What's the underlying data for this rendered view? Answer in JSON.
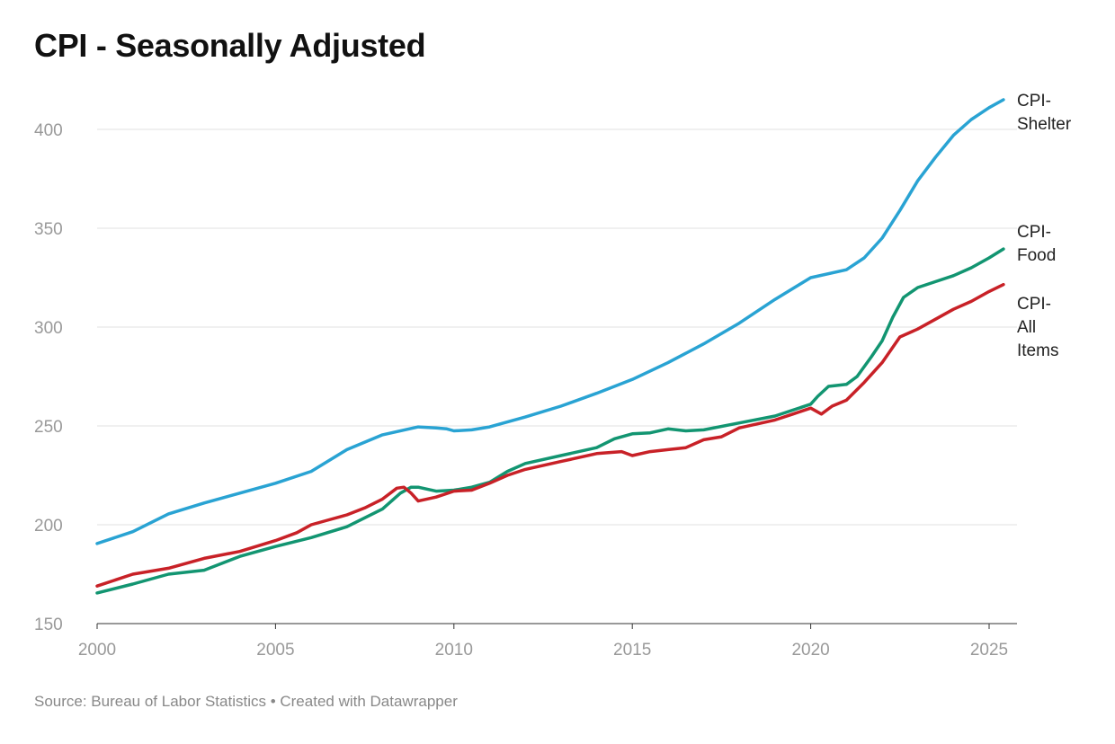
{
  "title": "CPI - Seasonally Adjusted",
  "source": "Source: Bureau of Labor Statistics • Created with Datawrapper",
  "chart_data": {
    "type": "line",
    "title": "CPI - Seasonally Adjusted",
    "xlabel": "",
    "ylabel": "",
    "xlim": [
      2000,
      2025.5
    ],
    "ylim": [
      150,
      415
    ],
    "x_ticks": [
      2000,
      2005,
      2010,
      2015,
      2020,
      2025
    ],
    "y_ticks": [
      150,
      200,
      250,
      300,
      350,
      400
    ],
    "grid": "horizontal",
    "legend": "direct labels at right end of lines",
    "series": [
      {
        "name": "CPI-Shelter",
        "label_lines": [
          "CPI-",
          "Shelter"
        ],
        "color": "#29a3d3",
        "points": [
          [
            2000,
            190.5
          ],
          [
            2001,
            196.5
          ],
          [
            2002,
            205.5
          ],
          [
            2003,
            211
          ],
          [
            2004,
            216
          ],
          [
            2005,
            221
          ],
          [
            2006,
            227
          ],
          [
            2007,
            238
          ],
          [
            2008,
            245.5
          ],
          [
            2009,
            249.5
          ],
          [
            2009.5,
            249
          ],
          [
            2009.8,
            248.5
          ],
          [
            2010,
            247.5
          ],
          [
            2010.5,
            248
          ],
          [
            2011,
            249.5
          ],
          [
            2012,
            254.5
          ],
          [
            2013,
            260
          ],
          [
            2014,
            266.5
          ],
          [
            2015,
            273.5
          ],
          [
            2016,
            282
          ],
          [
            2017,
            291.5
          ],
          [
            2018,
            302
          ],
          [
            2019,
            314
          ],
          [
            2020,
            325
          ],
          [
            2021,
            329
          ],
          [
            2021.5,
            335
          ],
          [
            2022,
            345
          ],
          [
            2022.5,
            359
          ],
          [
            2023,
            374
          ],
          [
            2023.5,
            386
          ],
          [
            2024,
            397
          ],
          [
            2024.5,
            405
          ],
          [
            2025,
            411
          ],
          [
            2025.4,
            415
          ]
        ]
      },
      {
        "name": "CPI-Food",
        "label_lines": [
          "CPI-",
          "Food"
        ],
        "color": "#129571",
        "points": [
          [
            2000,
            165.5
          ],
          [
            2001,
            170
          ],
          [
            2002,
            175
          ],
          [
            2003,
            177
          ],
          [
            2004,
            184
          ],
          [
            2005,
            189
          ],
          [
            2006,
            193.5
          ],
          [
            2007,
            199
          ],
          [
            2008,
            208
          ],
          [
            2008.5,
            216
          ],
          [
            2008.8,
            219
          ],
          [
            2009,
            219
          ],
          [
            2009.5,
            217
          ],
          [
            2010,
            217.5
          ],
          [
            2010.5,
            219
          ],
          [
            2011,
            221.5
          ],
          [
            2011.5,
            227
          ],
          [
            2012,
            231
          ],
          [
            2013,
            235
          ],
          [
            2014,
            239
          ],
          [
            2014.5,
            243.5
          ],
          [
            2015,
            246
          ],
          [
            2015.5,
            246.5
          ],
          [
            2016,
            248.5
          ],
          [
            2016.5,
            247.5
          ],
          [
            2017,
            248
          ],
          [
            2018,
            251.5
          ],
          [
            2019,
            255
          ],
          [
            2019.5,
            258
          ],
          [
            2020,
            261
          ],
          [
            2020.2,
            265
          ],
          [
            2020.5,
            270
          ],
          [
            2021,
            271
          ],
          [
            2021.3,
            275
          ],
          [
            2021.7,
            285
          ],
          [
            2022,
            293
          ],
          [
            2022.3,
            305
          ],
          [
            2022.6,
            315
          ],
          [
            2023,
            320
          ],
          [
            2023.5,
            323
          ],
          [
            2024,
            326
          ],
          [
            2024.5,
            330
          ],
          [
            2025,
            335
          ],
          [
            2025.4,
            339.5
          ]
        ]
      },
      {
        "name": "CPI-All Items",
        "label_lines": [
          "CPI-",
          "All",
          "Items"
        ],
        "color": "#c82127",
        "points": [
          [
            2000,
            169
          ],
          [
            2001,
            175
          ],
          [
            2002,
            178
          ],
          [
            2003,
            183
          ],
          [
            2004,
            186.5
          ],
          [
            2005,
            192
          ],
          [
            2005.6,
            196
          ],
          [
            2006,
            200
          ],
          [
            2006.5,
            202.5
          ],
          [
            2007,
            205
          ],
          [
            2007.5,
            208.5
          ],
          [
            2008,
            213
          ],
          [
            2008.4,
            218.5
          ],
          [
            2008.6,
            219
          ],
          [
            2008.8,
            216
          ],
          [
            2009,
            212
          ],
          [
            2009.5,
            214
          ],
          [
            2010,
            217
          ],
          [
            2010.5,
            217.5
          ],
          [
            2011,
            221
          ],
          [
            2011.5,
            225
          ],
          [
            2012,
            228
          ],
          [
            2013,
            232
          ],
          [
            2014,
            236
          ],
          [
            2014.7,
            237
          ],
          [
            2015,
            235
          ],
          [
            2015.5,
            237
          ],
          [
            2016,
            238
          ],
          [
            2016.5,
            239
          ],
          [
            2017,
            243
          ],
          [
            2017.5,
            244.5
          ],
          [
            2018,
            249
          ],
          [
            2019,
            253
          ],
          [
            2019.5,
            256
          ],
          [
            2020,
            259
          ],
          [
            2020.3,
            256
          ],
          [
            2020.6,
            260
          ],
          [
            2021,
            263
          ],
          [
            2021.5,
            272
          ],
          [
            2022,
            282
          ],
          [
            2022.5,
            295
          ],
          [
            2023,
            299
          ],
          [
            2023.5,
            304
          ],
          [
            2024,
            309
          ],
          [
            2024.5,
            313
          ],
          [
            2025,
            318
          ],
          [
            2025.4,
            321.5
          ]
        ]
      }
    ]
  }
}
